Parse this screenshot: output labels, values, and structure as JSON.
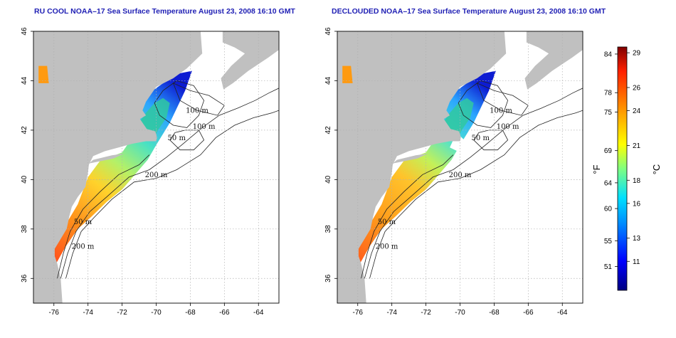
{
  "panels": [
    {
      "title": "RU COOL NOAA–17 Sea Surface Temperature August 23, 2008 16:10 GMT"
    },
    {
      "title": "DECLOUDED NOAA–17 Sea Surface Temperature August 23, 2008 16:10 GMT"
    }
  ],
  "map": {
    "lon_range": [
      -77.2,
      -62.8
    ],
    "lat_range": [
      35,
      46
    ],
    "x_ticks": [
      "-76",
      "-74",
      "-72",
      "-70",
      "-68",
      "-66",
      "-64"
    ],
    "y_ticks": [
      "36",
      "38",
      "40",
      "42",
      "44",
      "46"
    ],
    "contour_labels": [
      "100 m",
      "100 m",
      "50 m",
      "200 m",
      "50 m",
      "200 m"
    ],
    "land_color": "#c0c0c0",
    "ocean_color": "#ffffff",
    "grid": "dotted"
  },
  "colorbar": {
    "fahrenheit_ticks": [
      "84",
      "78",
      "75",
      "69",
      "64",
      "60",
      "55",
      "51"
    ],
    "celsius_ticks": [
      "29",
      "26",
      "24",
      "21",
      "18",
      "16",
      "13",
      "11"
    ],
    "fahrenheit_unit": "°F",
    "celsius_unit": "°C",
    "range_c": [
      8.5,
      29.5
    ],
    "colors": [
      "#000080",
      "#0000ff",
      "#0080ff",
      "#00ffff",
      "#80ff80",
      "#ffff00",
      "#ff8000",
      "#ff0000",
      "#800000"
    ]
  }
}
